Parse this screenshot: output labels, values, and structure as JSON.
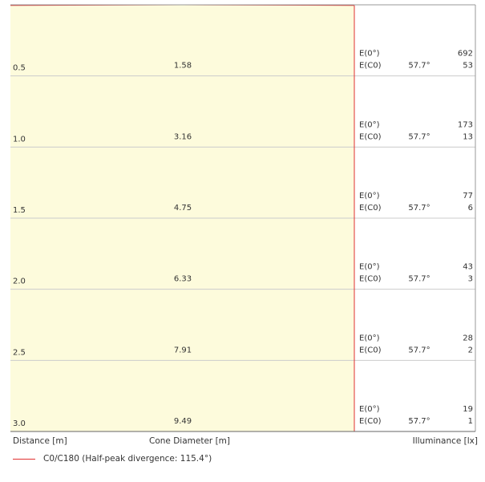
{
  "chart_data": {
    "type": "cone_diagram",
    "half_peak_divergence_deg": 115.4,
    "half_angle_label": "57.7°",
    "rows": [
      {
        "distance": "0.5",
        "diameter": "1.58",
        "e0_label": "E(0°)",
        "ec0_label": "E(C0)",
        "e0": "692",
        "ec0": "53"
      },
      {
        "distance": "1.0",
        "diameter": "3.16",
        "e0_label": "E(0°)",
        "ec0_label": "E(C0)",
        "e0": "173",
        "ec0": "13"
      },
      {
        "distance": "1.5",
        "diameter": "4.75",
        "e0_label": "E(0°)",
        "ec0_label": "E(C0)",
        "e0": "77",
        "ec0": "6"
      },
      {
        "distance": "2.0",
        "diameter": "6.33",
        "e0_label": "E(0°)",
        "ec0_label": "E(C0)",
        "e0": "43",
        "ec0": "3"
      },
      {
        "distance": "2.5",
        "diameter": "7.91",
        "e0_label": "E(0°)",
        "ec0_label": "E(C0)",
        "e0": "28",
        "ec0": "2"
      },
      {
        "distance": "3.0",
        "diameter": "9.49",
        "e0_label": "E(0°)",
        "ec0_label": "E(C0)",
        "e0": "19",
        "ec0": "1"
      }
    ],
    "colors": {
      "cone_fill": "#fdfbdc",
      "cone_stroke": "#e03030",
      "grid": "#cccccc",
      "frame": "#999999"
    }
  },
  "footer": {
    "distance_label": "Distance [m]",
    "diameter_label": "Cone Diameter [m]",
    "illuminance_label": "Illuminance [lx]"
  },
  "legend": {
    "label": "C0/C180 (Half-peak divergence: 115.4°)"
  }
}
